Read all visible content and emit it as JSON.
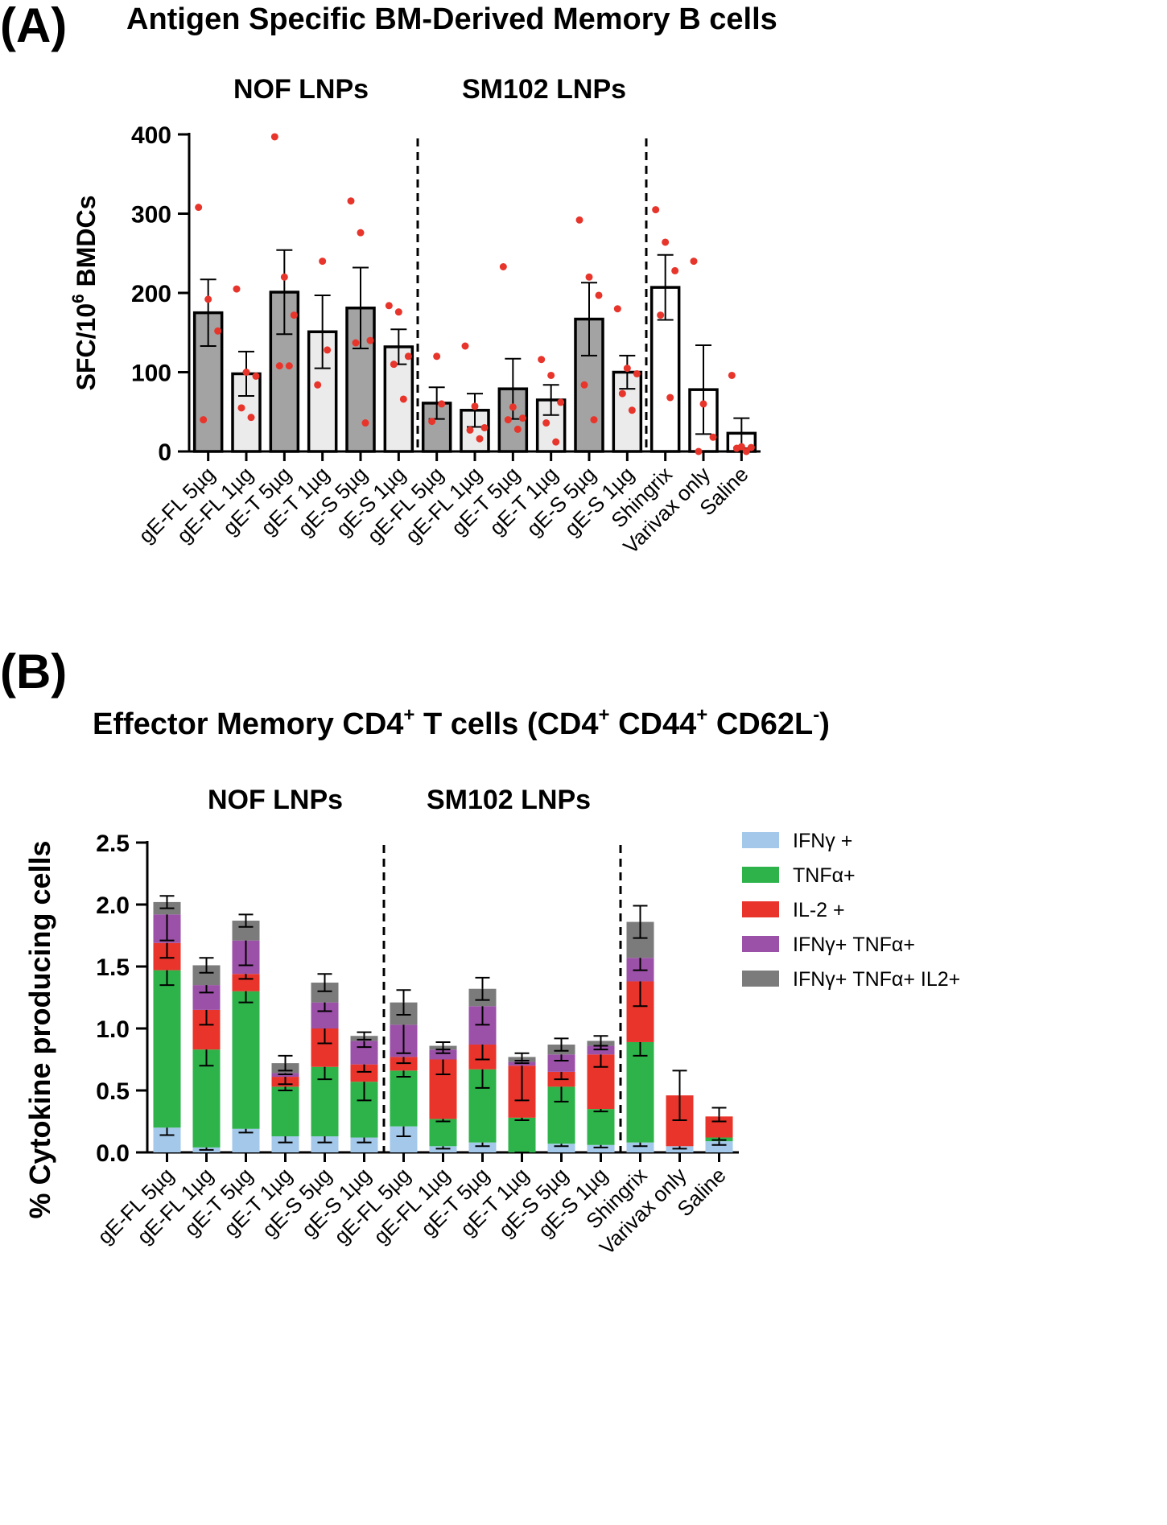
{
  "panels": [
    {
      "letter": "(A)",
      "title": "Antigen Specific BM-Derived Memory B cells"
    },
    {
      "letter": "(B)",
      "title_parts": [
        "Effector Memory CD4",
        "+",
        " T cells (CD4",
        "+",
        " CD44",
        "+",
        " CD62L",
        "-",
        ")"
      ]
    }
  ],
  "chart_data": [
    {
      "type": "bar",
      "title": "Antigen Specific BM-Derived Memory B cells",
      "ylabel_parts": [
        "SFC/10",
        "6",
        " BMDCs"
      ],
      "ylim": [
        0,
        400
      ],
      "yticks": [
        0,
        100,
        200,
        300,
        400
      ],
      "group_labels": [
        "NOF LNPs",
        "SM102 LNPs"
      ],
      "categories": [
        "gE-FL 5µg",
        "gE-FL 1µg",
        "gE-T 5µg",
        "gE-T 1µg",
        "gE-S 5µg",
        "gE-S 1µg",
        "gE-FL 5µg",
        "gE-FL 1µg",
        "gE-T 5µg",
        "gE-T 1µg",
        "gE-S 5µg",
        "gE-S 1µg",
        "Shingrix",
        "Varivax only",
        "Saline"
      ],
      "values": [
        175,
        98,
        201,
        151,
        181,
        132,
        61,
        52,
        79,
        65,
        167,
        100,
        207,
        78,
        23
      ],
      "errors": [
        42,
        28,
        53,
        46,
        51,
        22,
        20,
        21,
        38,
        19,
        46,
        21,
        41,
        56,
        19
      ],
      "bar_fills": [
        "#a3a3a3",
        "#ebebeb",
        "#a3a3a3",
        "#ebebeb",
        "#a3a3a3",
        "#ebebeb",
        "#a3a3a3",
        "#ebebeb",
        "#a3a3a3",
        "#ebebeb",
        "#a3a3a3",
        "#ebebeb",
        "#ffffff",
        "#ffffff",
        "#ffffff"
      ],
      "points": [
        [
          308,
          192,
          152,
          40
        ],
        [
          205,
          100,
          95,
          55,
          43
        ],
        [
          397,
          220,
          172,
          108,
          108
        ],
        [
          240,
          128,
          84
        ],
        [
          316,
          276,
          140,
          137,
          36
        ],
        [
          184,
          176,
          120,
          110,
          66
        ],
        [
          120,
          60,
          38
        ],
        [
          133,
          57,
          30,
          27,
          16
        ],
        [
          233,
          56,
          42,
          40,
          28
        ],
        [
          116,
          96,
          62,
          36,
          12
        ],
        [
          292,
          220,
          197,
          84,
          40
        ],
        [
          180,
          105,
          98,
          73,
          52
        ],
        [
          305,
          264,
          228,
          172,
          68
        ],
        [
          240,
          60,
          18,
          0
        ],
        [
          96,
          6,
          5,
          4,
          0
        ]
      ],
      "point_color": "#e8352b",
      "dividers_after": [
        6,
        12
      ]
    },
    {
      "type": "bar",
      "stacked": true,
      "ylabel": "% Cytokine producing cells",
      "ylim": [
        0,
        2.5
      ],
      "yticks": [
        "0.0",
        "0.5",
        "1.0",
        "1.5",
        "2.0",
        "2.5"
      ],
      "group_labels": [
        "NOF LNPs",
        "SM102 LNPs"
      ],
      "categories": [
        "gE-FL 5µg",
        "gE-FL 1µg",
        "gE-T 5µg",
        "gE-T 1µg",
        "gE-S 5µg",
        "gE-S 1µg",
        "gE-FL 5µg",
        "gE-FL 1µg",
        "gE-T 5µg",
        "gE-T 1µg",
        "gE-S 5µg",
        "gE-S 1µg",
        "Shingrix",
        "Varivax only",
        "Saline"
      ],
      "series": [
        {
          "name": "IFNγ +",
          "color": "#a3c8ea",
          "values": [
            0.2,
            0.04,
            0.19,
            0.13,
            0.13,
            0.12,
            0.21,
            0.05,
            0.08,
            0.0,
            0.07,
            0.06,
            0.08,
            0.05,
            0.09
          ],
          "errors": [
            0.06,
            0.02,
            0.03,
            0.05,
            0.05,
            0.04,
            0.08,
            0.02,
            0.03,
            0.02,
            0.02,
            0.02,
            0.03,
            0.02,
            0.03
          ]
        },
        {
          "name": "TNFα+",
          "color": "#2db34a",
          "values": [
            1.27,
            0.79,
            1.11,
            0.4,
            0.56,
            0.45,
            0.45,
            0.22,
            0.59,
            0.28,
            0.46,
            0.29,
            0.81,
            0.0,
            0.03
          ],
          "errors": [
            0.12,
            0.13,
            0.09,
            0.03,
            0.1,
            0.15,
            0.05,
            0.02,
            0.15,
            0.02,
            0.12,
            0.02,
            0.11,
            0.0,
            0.02
          ]
        },
        {
          "name": "IL-2 +",
          "color": "#e8342a",
          "values": [
            0.22,
            0.32,
            0.14,
            0.08,
            0.31,
            0.14,
            0.11,
            0.48,
            0.2,
            0.42,
            0.12,
            0.44,
            0.49,
            0.41,
            0.17
          ],
          "errors": [
            0.12,
            0.12,
            0.04,
            0.06,
            0.12,
            0.06,
            0.05,
            0.12,
            0.12,
            0.28,
            0.06,
            0.1,
            0.2,
            0.2,
            0.04
          ]
        },
        {
          "name": "IFNγ+ TNFα+",
          "color": "#9b51a8",
          "values": [
            0.23,
            0.2,
            0.27,
            0.03,
            0.21,
            0.19,
            0.26,
            0.08,
            0.31,
            0.03,
            0.14,
            0.07,
            0.19,
            0.0,
            0.0
          ],
          "errors": [
            0.21,
            0.06,
            0.2,
            0.01,
            0.07,
            0.05,
            0.23,
            0.03,
            0.15,
            0.01,
            0.05,
            0.03,
            0.1,
            0.0,
            0.0
          ]
        },
        {
          "name": "IFNγ+ TNFα+ IL2+",
          "color": "#7b7b7b",
          "values": [
            0.1,
            0.16,
            0.16,
            0.08,
            0.16,
            0.04,
            0.18,
            0.03,
            0.14,
            0.04,
            0.08,
            0.04,
            0.29,
            0.0,
            0.0
          ],
          "errors": [
            0.05,
            0.06,
            0.05,
            0.06,
            0.07,
            0.03,
            0.1,
            0.03,
            0.09,
            0.03,
            0.05,
            0.04,
            0.13,
            0.0,
            0.0
          ]
        }
      ],
      "error_on_total": [
        0.05,
        0.06,
        0.05,
        0.06,
        0.07,
        0.03,
        0.1,
        0.03,
        0.09,
        0.03,
        0.05,
        0.04,
        0.13,
        0.2,
        0.07
      ],
      "dividers_after": [
        6,
        12
      ]
    }
  ]
}
